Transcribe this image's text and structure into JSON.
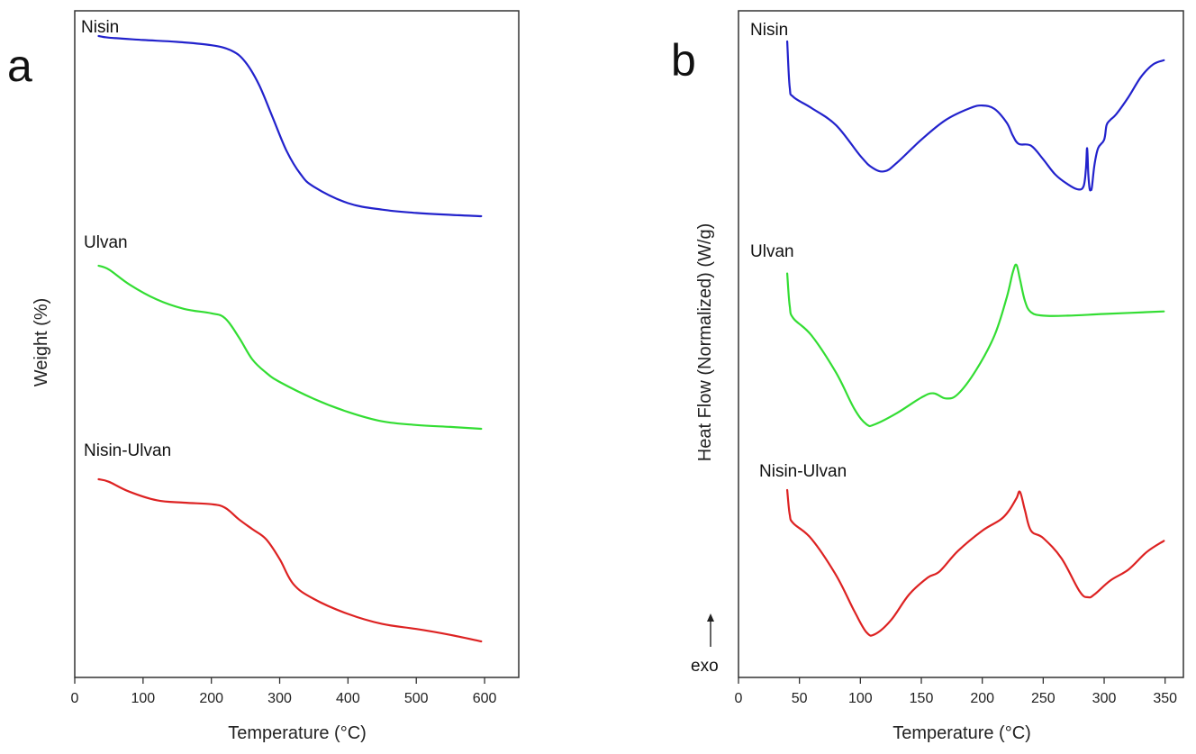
{
  "chart_data": [
    {
      "panel": "a",
      "type": "line",
      "xlabel": "Temperature (°C)",
      "ylabel": "Weight (%)",
      "xlim": [
        0,
        650
      ],
      "xticks": [
        0,
        100,
        200,
        300,
        400,
        500,
        600
      ],
      "yticks_shown": false,
      "series": [
        {
          "name": "Nisin",
          "color": "#2222cc",
          "x": [
            35,
            50,
            100,
            150,
            200,
            230,
            250,
            270,
            290,
            310,
            330,
            350,
            400,
            450,
            500,
            550,
            595
          ],
          "y": [
            97,
            96.5,
            95.8,
            95.2,
            94.2,
            92.5,
            89,
            82,
            72,
            62,
            55,
            51,
            46,
            44,
            43,
            42.4,
            42
          ]
        },
        {
          "name": "Ulvan",
          "color": "#33dd33",
          "x": [
            35,
            50,
            80,
            120,
            160,
            200,
            220,
            240,
            260,
            280,
            300,
            350,
            400,
            450,
            500,
            550,
            595
          ],
          "y": [
            97,
            96,
            92,
            88,
            85.5,
            84.3,
            83,
            78,
            72,
            68.5,
            66,
            61.5,
            58,
            55.5,
            54.5,
            54,
            53.5
          ]
        },
        {
          "name": "Nisin-Ulvan",
          "color": "#dd2222",
          "x": [
            35,
            50,
            80,
            120,
            160,
            200,
            220,
            240,
            260,
            280,
            300,
            320,
            350,
            400,
            450,
            500,
            550,
            595
          ],
          "y": [
            97,
            96.5,
            94.5,
            92.8,
            92.3,
            92,
            91.3,
            89,
            87,
            85,
            81,
            76,
            73,
            70,
            68,
            67,
            65.8,
            64.5
          ]
        }
      ]
    },
    {
      "panel": "b",
      "type": "line",
      "xlabel": "Temperature (°C)",
      "ylabel": "Heat Flow (Normalized) (W/g)",
      "xlim": [
        0,
        365
      ],
      "xticks": [
        0,
        50,
        100,
        150,
        200,
        250,
        300,
        350
      ],
      "yticks_shown": false,
      "annotations": [
        "exo"
      ],
      "series": [
        {
          "name": "Nisin",
          "color": "#2222cc",
          "x": [
            40,
            42,
            45,
            60,
            80,
            100,
            110,
            120,
            130,
            150,
            170,
            190,
            200,
            210,
            220,
            225,
            230,
            240,
            250,
            260,
            270,
            278,
            283,
            285,
            286,
            287,
            288,
            289,
            290,
            292,
            295,
            300,
            302,
            305,
            310,
            320,
            330,
            340,
            349
          ],
          "y": [
            3,
            -2.3,
            -3.5,
            -4.8,
            -6.8,
            -10.4,
            -11.8,
            -12.2,
            -11.2,
            -8.5,
            -6.2,
            -4.8,
            -4.5,
            -4.9,
            -6.5,
            -8,
            -9,
            -9.2,
            -10.8,
            -12.6,
            -13.7,
            -14.3,
            -14,
            -12,
            -9.5,
            -12.5,
            -14.2,
            -14.4,
            -14,
            -11.5,
            -9.5,
            -8.5,
            -6.8,
            -6.2,
            -5.5,
            -3.5,
            -1.2,
            0.3,
            0.8
          ]
        },
        {
          "name": "Ulvan",
          "color": "#33dd33",
          "x": [
            40,
            42,
            45,
            60,
            80,
            95,
            105,
            112,
            130,
            150,
            160,
            170,
            180,
            195,
            210,
            220,
            225,
            228,
            231,
            235,
            240,
            250,
            270,
            300,
            349
          ],
          "y": [
            3.7,
            0,
            -1.5,
            -3.5,
            -7.8,
            -12,
            -13.8,
            -13.8,
            -12.5,
            -10.7,
            -10.2,
            -10.8,
            -10.3,
            -7.5,
            -3.5,
            0.9,
            3.8,
            4.7,
            3,
            0.5,
            -0.8,
            -1.2,
            -1.2,
            -1,
            -0.7
          ]
        },
        {
          "name": "Nisin-Ulvan",
          "color": "#dd2222",
          "x": [
            40,
            42,
            45,
            60,
            80,
            95,
            105,
            112,
            125,
            140,
            155,
            165,
            180,
            200,
            215,
            222,
            228,
            231,
            235,
            240,
            250,
            265,
            280,
            287,
            292,
            305,
            320,
            335,
            349
          ],
          "y": [
            2.8,
            0.2,
            -0.8,
            -2.5,
            -6.4,
            -10.3,
            -12.6,
            -12.8,
            -11.3,
            -8.5,
            -6.7,
            -6,
            -3.8,
            -1.6,
            -0.4,
            0.6,
            1.9,
            2.6,
            0.6,
            -1.6,
            -2.4,
            -4.6,
            -8.2,
            -8.8,
            -8.5,
            -7,
            -5.8,
            -3.9,
            -2.7
          ]
        }
      ]
    }
  ]
}
